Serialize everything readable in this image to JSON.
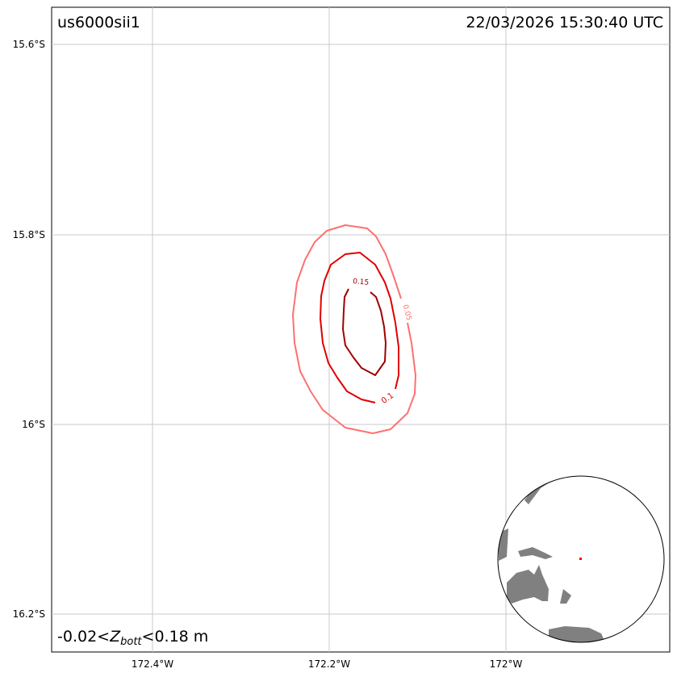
{
  "map": {
    "event_id": "us6000sii1",
    "timestamp": "22/03/2026 15:30:40 UTC",
    "range_label_prefix": "-0.02<",
    "range_label_var": "Z",
    "range_label_sub": "bott",
    "range_label_suffix": "<0.18 m",
    "lat_ticks": [
      "15.6°S",
      "15.8°S",
      "16°S",
      "16.2°S"
    ],
    "lon_ticks": [
      "172.4°W",
      "172.2°W",
      "172°W"
    ],
    "grid": true,
    "contours": [
      {
        "level": "0.05",
        "color": "#ff7070"
      },
      {
        "level": "0.1",
        "color": "#e00000"
      },
      {
        "level": "0.15",
        "color": "#a00000"
      }
    ],
    "inset": {
      "type": "orthographic globe",
      "land_color": "#808080",
      "epicenter_color": "#ff0000"
    }
  }
}
